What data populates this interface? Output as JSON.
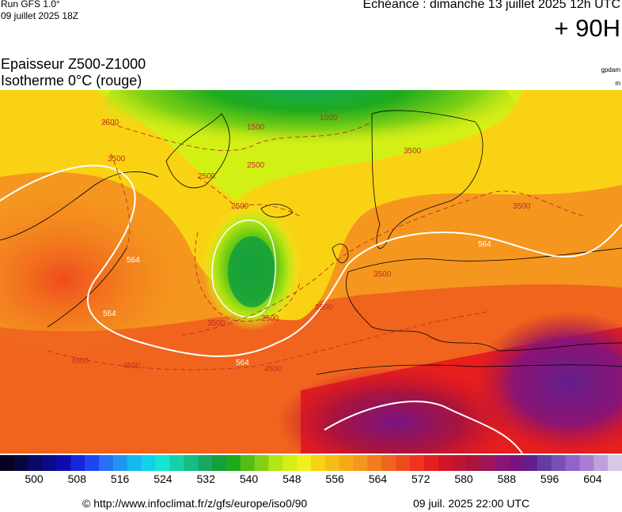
{
  "header": {
    "run_title": "Run GFS 1.0°",
    "run_date": "09 juillet 2025 18Z",
    "echeance": "Echéance : dimanche 13 juillet 2025 12h UTC",
    "hour": "+ 90H"
  },
  "params": {
    "line1": "Epaisseur Z500-Z1000",
    "line2": "Isotherme 0°C (rouge)",
    "unit1": "gpdam",
    "unit2": "m"
  },
  "map": {
    "contour_labels_white": [
      "564",
      "564",
      "564",
      "564"
    ],
    "contour_labels_red": [
      "2500",
      "2500",
      "2500",
      "2500",
      "2500",
      "1500",
      "1500",
      "3500",
      "3500",
      "3500",
      "3500",
      "3500",
      "3500",
      "4500",
      "4500",
      "4500"
    ],
    "colors": {
      "background": "#ffffff",
      "white_contour": "#ffffff",
      "isotherm": "#c0301c",
      "coastline": "#000000"
    }
  },
  "colorbar": {
    "colors": [
      "#05051f",
      "#07073f",
      "#0a0a66",
      "#0a0a8c",
      "#0c0cb3",
      "#1428d8",
      "#1e46f0",
      "#2a6ef8",
      "#1e96f0",
      "#14b9f0",
      "#14d2e6",
      "#14e6d2",
      "#14d2a5",
      "#14be82",
      "#14aa64",
      "#14a03c",
      "#1eaa1e",
      "#50be14",
      "#82d214",
      "#b4e614",
      "#d2f014",
      "#f0f01e",
      "#fad214",
      "#f5be14",
      "#f5aa14",
      "#f5961e",
      "#f07d1e",
      "#f0641e",
      "#f04b1e",
      "#f0321e",
      "#e61e1e",
      "#d21428",
      "#be1432",
      "#aa143c",
      "#a0145a",
      "#8c1473",
      "#781482",
      "#641e8c",
      "#643ca0",
      "#7850b4",
      "#9064c8",
      "#a87ed2",
      "#c0a0dc",
      "#d8c8e8"
    ],
    "labels": [
      "500",
      "508",
      "516",
      "524",
      "532",
      "540",
      "548",
      "556",
      "564",
      "572",
      "580",
      "588",
      "596",
      "604"
    ]
  },
  "footer": {
    "url": "© http://www.infoclimat.fr/z/gfs/europe/iso0/90",
    "time": "09 juil. 2025 22:00 UTC"
  }
}
